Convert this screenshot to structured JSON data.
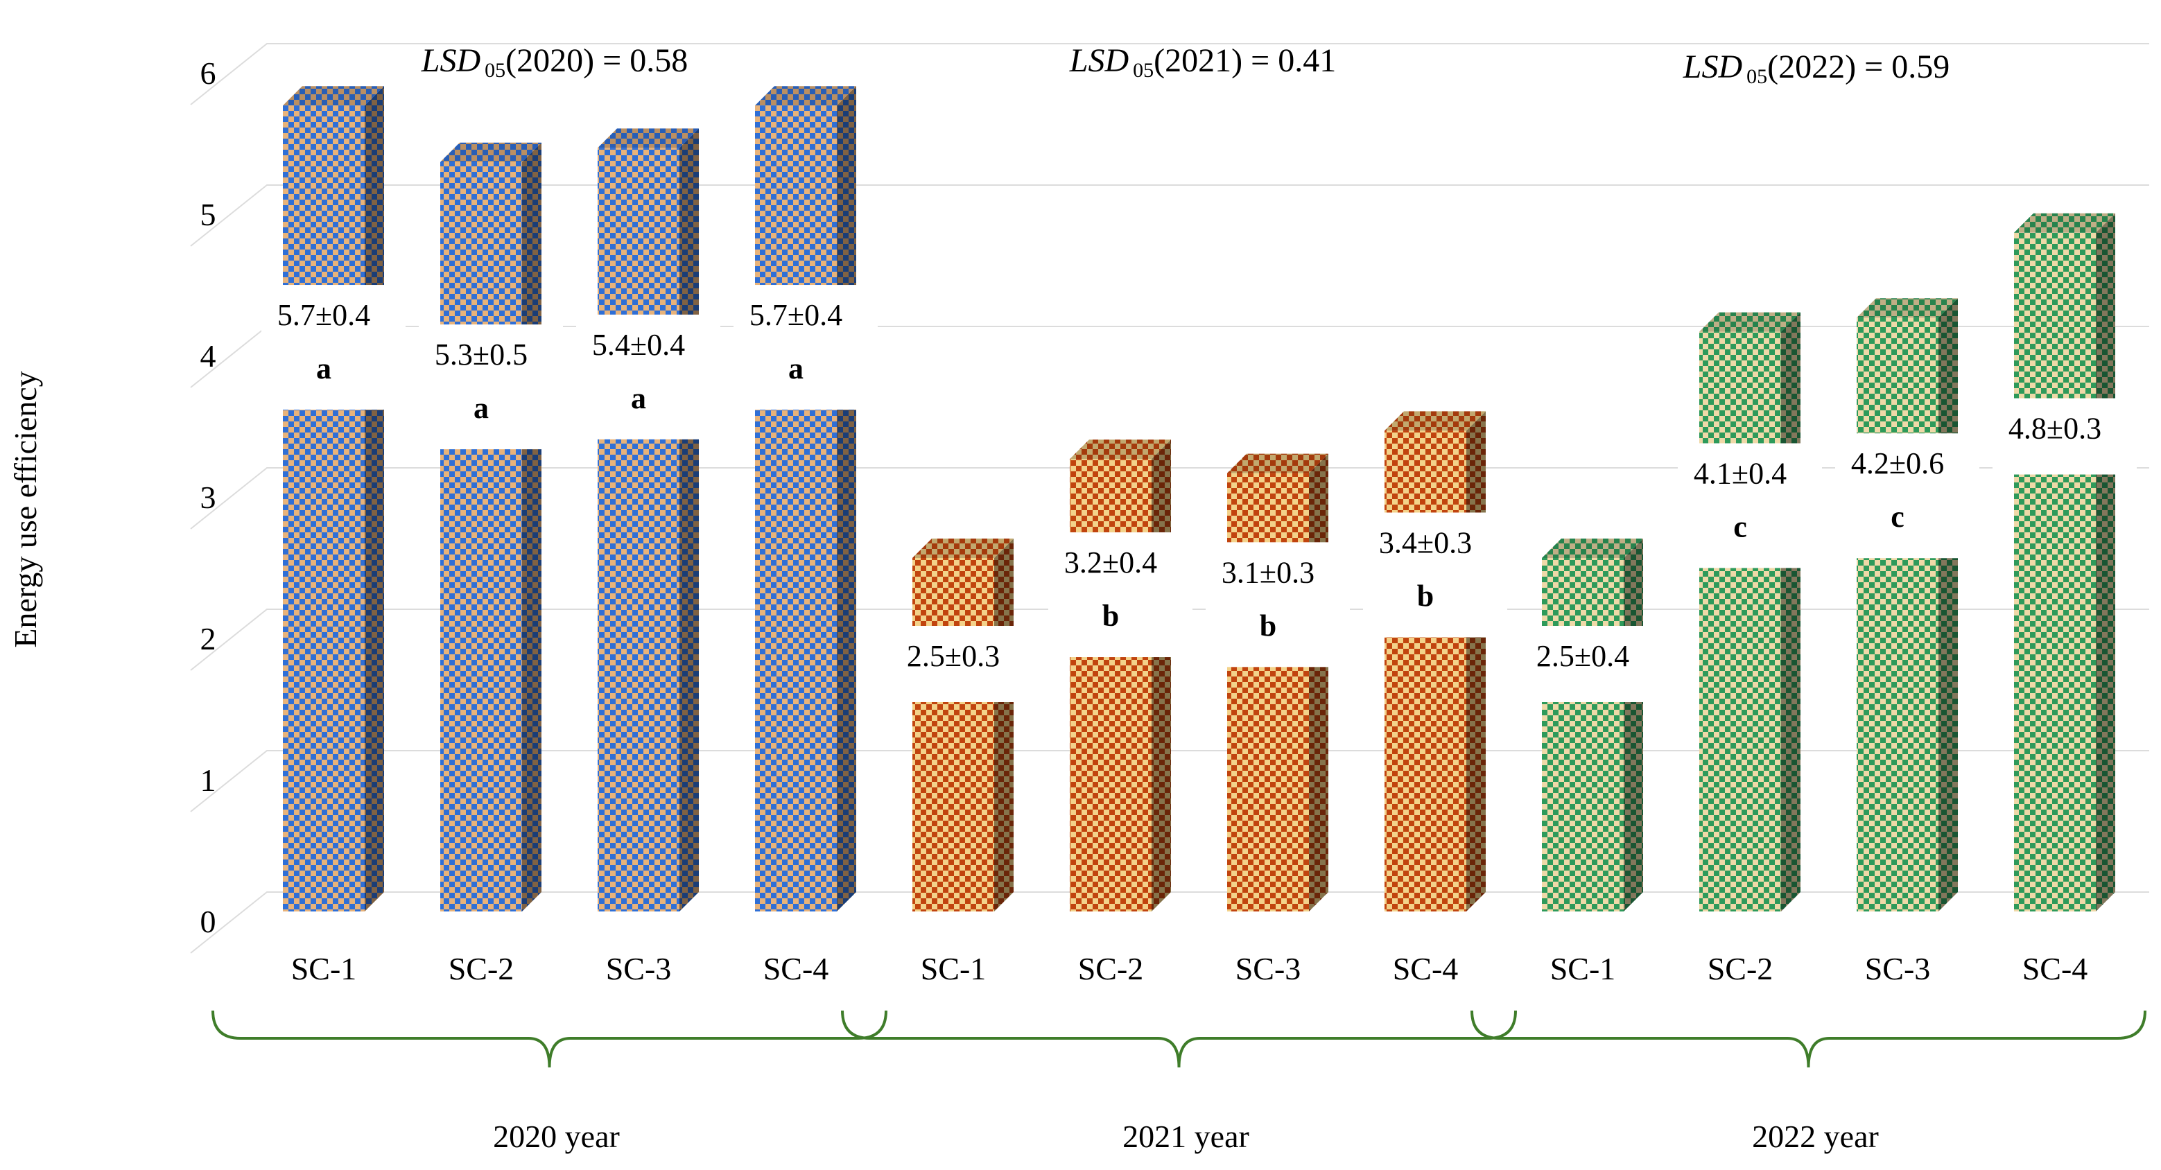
{
  "chart_data": {
    "type": "bar",
    "ylabel": "Energy use efficiency",
    "ylim": [
      0,
      6
    ],
    "yticks": [
      0,
      1,
      2,
      3,
      4,
      5,
      6
    ],
    "grid": true,
    "categories": [
      "SC-1",
      "SC-2",
      "SC-3",
      "SC-4"
    ],
    "groups": [
      {
        "name": "2020 year",
        "lsd_label": "LSD",
        "lsd_sub": "05",
        "lsd_rest": "(2020) = 0.58",
        "color": "#2f6fd6",
        "color_light": "#e8b37a",
        "values": [
          5.7,
          5.3,
          5.4,
          5.7
        ],
        "labels": [
          "5.7±0.4",
          "5.3±0.5",
          "5.4±0.4",
          "5.7±0.4"
        ],
        "letters": [
          "a",
          "a",
          "a",
          "a"
        ]
      },
      {
        "name": "2021 year",
        "lsd_label": "LSD",
        "lsd_sub": "05",
        "lsd_rest": "(2021) = 0.41",
        "color": "#c1440e",
        "color_light": "#f3d28a",
        "values": [
          2.5,
          3.2,
          3.1,
          3.4
        ],
        "labels": [
          "2.5±0.3",
          "3.2±0.4",
          "3.1±0.3",
          "3.4±0.3"
        ],
        "letters": [
          "",
          "b",
          "b",
          "b"
        ]
      },
      {
        "name": "2022 year",
        "lsd_label": "LSD",
        "lsd_sub": "05",
        "lsd_rest": "(2022) = 0.59",
        "color": "#2e9a5a",
        "color_light": "#efd9a8",
        "values": [
          2.5,
          4.1,
          4.2,
          4.8
        ],
        "labels": [
          "2.5±0.4",
          "4.1±0.4",
          "4.2±0.6",
          "4.8±0.3"
        ],
        "letters": [
          "",
          "c",
          "c",
          ""
        ]
      }
    ]
  }
}
